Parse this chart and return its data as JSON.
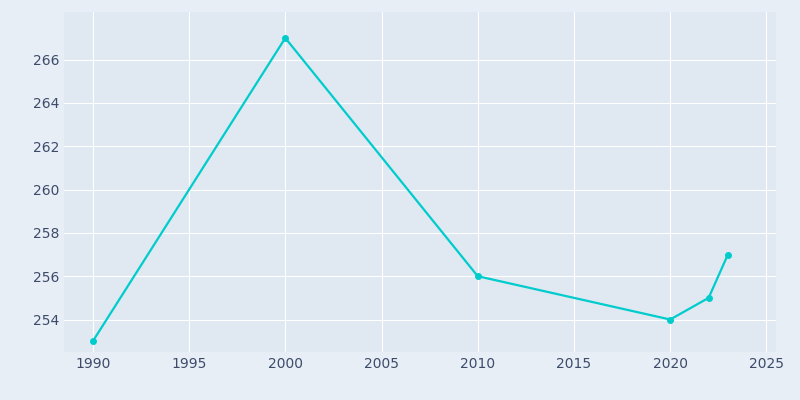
{
  "years": [
    1990,
    2000,
    2010,
    2020,
    2022,
    2023
  ],
  "population": [
    253,
    267,
    256,
    254,
    255,
    257
  ],
  "line_color": "#00CCCC",
  "bg_color": "#E8EEF5",
  "plot_bg_color": "#E0E8F2",
  "xlim": [
    1988.5,
    2025.5
  ],
  "ylim": [
    252.5,
    268.2
  ],
  "xticks": [
    1990,
    1995,
    2000,
    2005,
    2010,
    2015,
    2020,
    2025
  ],
  "yticks": [
    254,
    256,
    258,
    260,
    262,
    264,
    266
  ],
  "grid_color": "#FFFFFF",
  "tick_color": "#3D4B6B",
  "linewidth": 1.6,
  "markersize": 4
}
